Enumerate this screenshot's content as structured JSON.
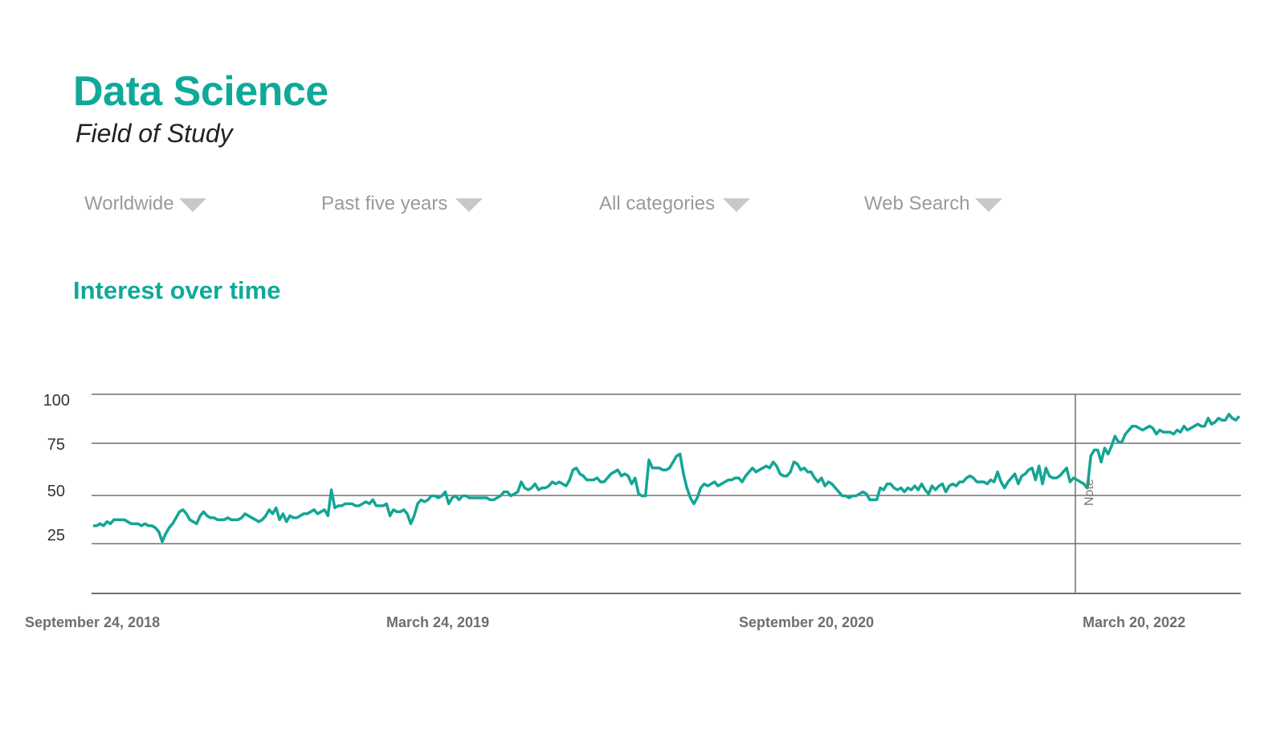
{
  "header": {
    "title": "Data Science",
    "subtitle": "Field of Study"
  },
  "filters": [
    {
      "label": "Worldwide",
      "icon": "dropdown-triangle-icon"
    },
    {
      "label": "Past five years",
      "icon": "dropdown-triangle-icon"
    },
    {
      "label": "All categories",
      "icon": "dropdown-triangle-icon"
    },
    {
      "label": "Web Search",
      "icon": "dropdown-triangle-icon"
    }
  ],
  "section": {
    "title": "Interest over time"
  },
  "colors": {
    "accent": "#0fa99a",
    "line": "#13a595",
    "grid": "#707070",
    "filter_text": "#9a9a9a",
    "triangle": "#c8c8c8"
  },
  "chart_data": {
    "type": "line",
    "title": "Interest over time",
    "xlabel": "",
    "ylabel": "",
    "ylim": [
      0,
      100
    ],
    "yticks": [
      100,
      75,
      50,
      25
    ],
    "xtick_labels": [
      "September 24, 2018",
      "March 24, 2019",
      "September 20, 2020",
      "March 20, 2022"
    ],
    "annotation": {
      "label": "Note",
      "position_fraction": 0.857
    },
    "grid": true,
    "legend": null,
    "series": [
      {
        "name": "Data Science",
        "values": [
          34,
          34,
          35,
          34,
          36,
          35,
          37,
          37,
          37,
          37,
          36,
          35,
          35,
          35,
          34,
          35,
          34,
          34,
          33,
          31,
          26,
          30,
          33,
          35,
          38,
          41,
          42,
          40,
          37,
          36,
          35,
          39,
          41,
          39,
          38,
          38,
          37,
          37,
          37,
          38,
          37,
          37,
          37,
          38,
          40,
          39,
          38,
          37,
          36,
          37,
          39,
          42,
          40,
          43,
          37,
          40,
          36,
          39,
          38,
          38,
          39,
          40,
          40,
          41,
          42,
          40,
          41,
          42,
          39,
          52,
          43,
          44,
          44,
          45,
          45,
          45,
          44,
          44,
          45,
          46,
          45,
          47,
          44,
          44,
          44,
          45,
          39,
          42,
          41,
          41,
          42,
          40,
          35,
          39,
          45,
          47,
          46,
          47,
          49,
          49,
          48,
          49,
          51,
          45,
          48,
          49,
          47,
          49,
          49,
          48,
          48,
          48,
          48,
          48,
          48,
          47,
          47,
          48,
          49,
          51,
          51,
          49,
          50,
          51,
          56,
          53,
          52,
          53,
          55,
          52,
          53,
          53,
          54,
          56,
          55,
          56,
          55,
          54,
          57,
          62,
          63,
          60,
          59,
          57,
          57,
          57,
          58,
          56,
          56,
          58,
          60,
          61,
          62,
          59,
          60,
          59,
          55,
          58,
          50,
          49,
          49,
          67,
          63,
          63,
          63,
          62,
          62,
          63,
          66,
          69,
          70,
          60,
          53,
          48,
          45,
          48,
          53,
          55,
          54,
          55,
          56,
          54,
          55,
          56,
          57,
          57,
          58,
          58,
          56,
          59,
          61,
          63,
          61,
          62,
          63,
          64,
          63,
          66,
          64,
          60,
          59,
          59,
          61,
          66,
          65,
          62,
          63,
          61,
          61,
          58,
          56,
          58,
          54,
          56,
          55,
          53,
          51,
          49,
          49,
          48,
          49,
          49,
          50,
          51,
          50,
          47,
          47,
          47,
          53,
          52,
          55,
          55,
          53,
          52,
          53,
          51,
          53,
          52,
          54,
          52,
          55,
          52,
          50,
          54,
          52,
          54,
          55,
          51,
          54,
          55,
          54,
          56,
          56,
          58,
          59,
          58,
          56,
          56,
          56,
          55,
          57,
          56,
          61,
          56,
          53,
          56,
          58,
          60,
          55,
          59,
          60,
          62,
          63,
          57,
          64,
          55,
          63,
          59,
          58,
          58,
          59,
          61,
          63,
          56,
          58,
          57,
          56,
          55,
          53,
          69,
          72,
          72,
          66,
          73,
          70,
          74,
          79,
          76,
          76,
          80,
          82,
          84,
          84,
          83,
          82,
          83,
          84,
          83,
          80,
          82,
          81,
          81,
          81,
          80,
          82,
          81,
          84,
          82,
          83,
          84,
          85,
          84,
          84,
          88,
          85,
          86,
          88,
          87,
          87,
          90,
          88,
          87,
          89
        ]
      }
    ]
  }
}
